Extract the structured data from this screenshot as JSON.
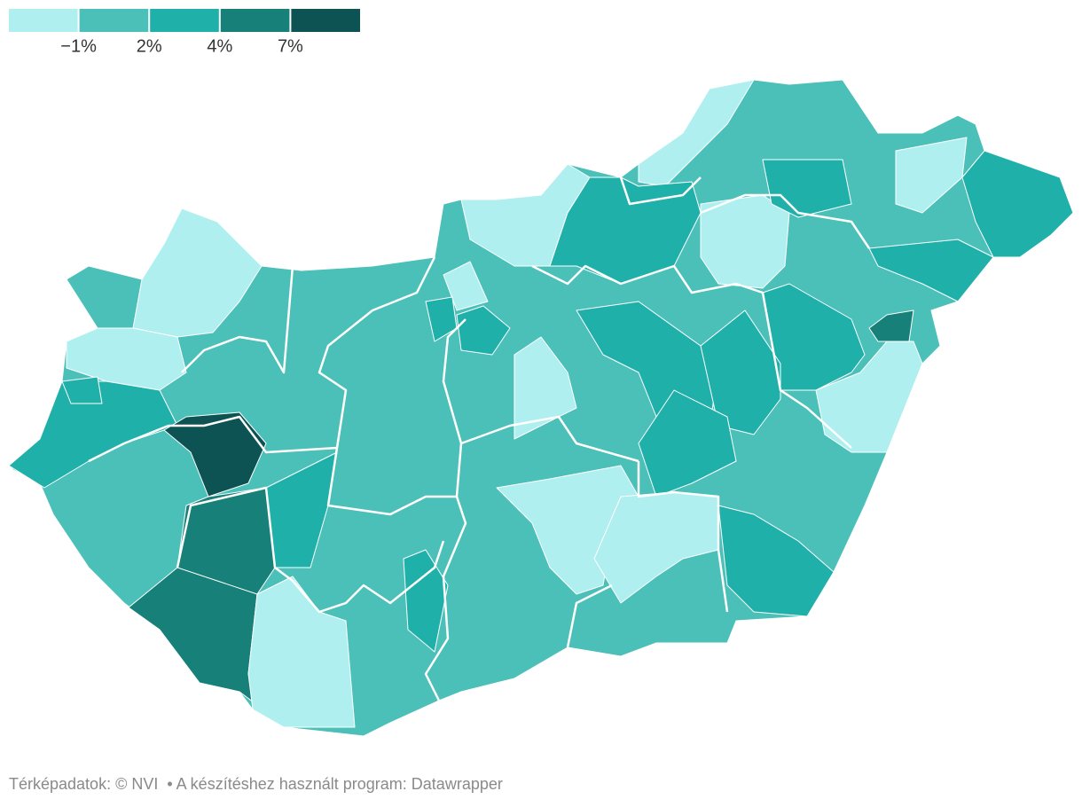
{
  "legend": {
    "colors": [
      "#b0efef",
      "#4bc0b8",
      "#20b0aa",
      "#168079",
      "#0e5354"
    ],
    "labels": [
      "−1%",
      "2%",
      "4%",
      "7%"
    ]
  },
  "footer": {
    "source": "Térképadatok: © NVI",
    "credit": "• A készítéshez használt program: Datawrapper"
  }
}
